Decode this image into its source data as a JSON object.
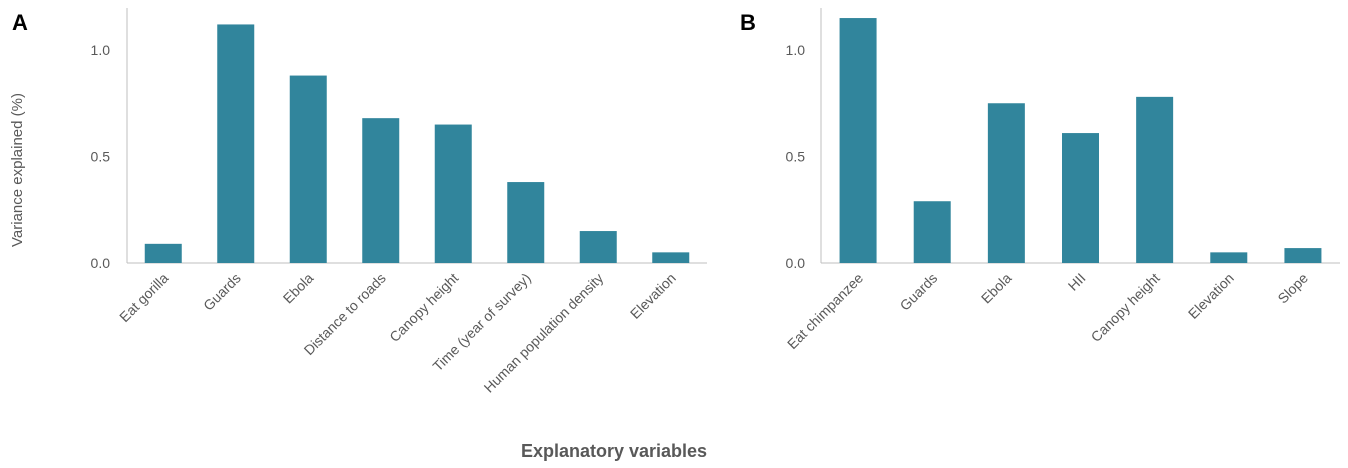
{
  "figure": {
    "ylabel": "Variance explained (%)",
    "xlabel": "Explanatory variables"
  },
  "chart_data": [
    {
      "type": "bar",
      "panel": "A",
      "categories": [
        "Eat gorilla",
        "Guards",
        "Ebola",
        "Distance to roads",
        "Canopy height",
        "Time (year of survey)",
        "Human population density",
        "Elevation"
      ],
      "values": [
        0.09,
        1.12,
        0.88,
        0.68,
        0.65,
        0.38,
        0.15,
        0.05
      ],
      "yticks": [
        0.0,
        0.5,
        1.0
      ],
      "ytick_labels": [
        "0.0",
        "0.5",
        "1.0"
      ],
      "ylim": [
        0,
        1.2
      ],
      "grid": false,
      "color": "#31859C"
    },
    {
      "type": "bar",
      "panel": "B",
      "categories": [
        "Eat chimpanzee",
        "Guards",
        "Ebola",
        "HII",
        "Canopy height",
        "Elevation",
        "Slope"
      ],
      "values": [
        1.15,
        0.29,
        0.75,
        0.61,
        0.78,
        0.05,
        0.07
      ],
      "yticks": [
        0.0,
        0.5,
        1.0
      ],
      "ytick_labels": [
        "0.0",
        "0.5",
        "1.0"
      ],
      "ylim": [
        0,
        1.2
      ],
      "grid": false,
      "color": "#31859C"
    }
  ]
}
